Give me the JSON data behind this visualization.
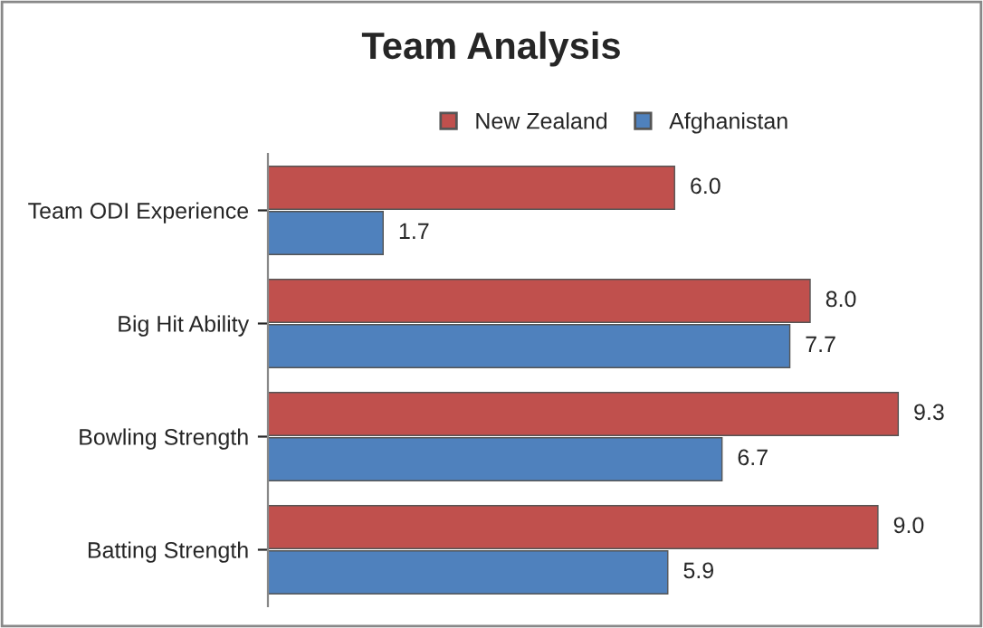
{
  "chart_data": {
    "type": "bar",
    "orientation": "horizontal",
    "title": "Team Analysis",
    "categories": [
      "Team ODI Experience",
      "Big Hit Ability",
      "Bowling Strength",
      "Batting Strength"
    ],
    "series": [
      {
        "name": "New Zealand",
        "color": "#c0504d",
        "values": [
          6.0,
          8.0,
          9.3,
          9.0
        ],
        "value_labels": [
          "6.0",
          "8.0",
          "9.3",
          "9.0"
        ]
      },
      {
        "name": "Afghanistan",
        "color": "#4f81bd",
        "values": [
          1.7,
          7.7,
          6.7,
          5.9
        ],
        "value_labels": [
          "1.7",
          "7.7",
          "6.7",
          "5.9"
        ]
      }
    ],
    "legend": "top",
    "grid": false
  }
}
